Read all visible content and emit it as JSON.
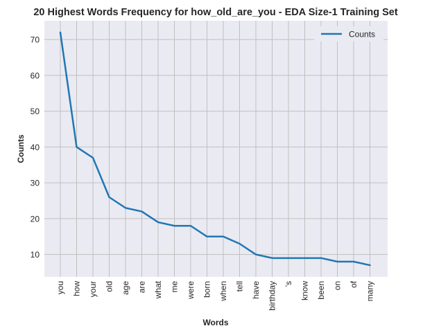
{
  "chart_data": {
    "type": "line",
    "title": "20 Highest Words Frequency for how_old_are_you - EDA Size-1 Training Set",
    "xlabel": "Words",
    "ylabel": "Counts",
    "categories": [
      "you",
      "how",
      "your",
      "old",
      "age",
      "are",
      "what",
      "me",
      "were",
      "born",
      "when",
      "tell",
      "have",
      "birthday",
      "'s",
      "know",
      "been",
      "on",
      "of",
      "many"
    ],
    "series": [
      {
        "name": "Counts",
        "values": [
          72,
          40,
          37,
          26,
          23,
          22,
          19,
          18,
          18,
          15,
          15,
          13,
          10,
          9,
          9,
          9,
          9,
          8,
          8,
          7
        ]
      }
    ],
    "yticks": [
      10,
      20,
      30,
      40,
      50,
      60,
      70
    ],
    "ylim": [
      3.75,
      75.25
    ],
    "grid": true,
    "legend_position": "top-right",
    "colors": {
      "line": "#1f77b4",
      "plot_bg": "#eaeaf2",
      "grid": "#c0c0c0"
    }
  }
}
